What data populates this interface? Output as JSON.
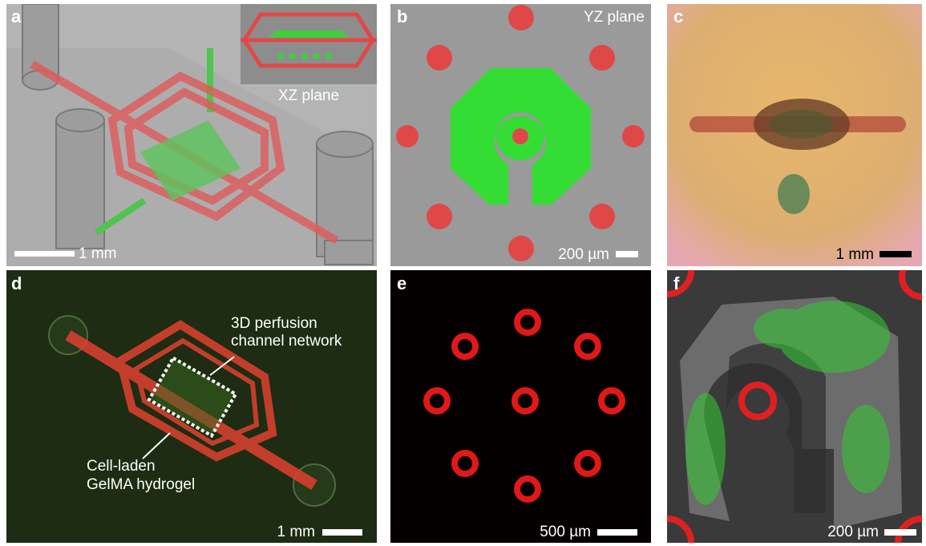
{
  "panels": [
    {
      "letter": "a",
      "inset_label": "XZ plane",
      "scale_bar": "1 mm"
    },
    {
      "letter": "b",
      "plane_label": "YZ plane",
      "scale_bar": "200 µm"
    },
    {
      "letter": "c",
      "scale_bar": "1 mm"
    },
    {
      "letter": "d",
      "annotations": [
        [
          "3D perfusion",
          "channel network"
        ],
        [
          "Cell-laden",
          "GelMA hydrogel"
        ]
      ],
      "scale_bar": "1 mm"
    },
    {
      "letter": "e",
      "scale_bar": "500 µm"
    },
    {
      "letter": "f",
      "scale_bar": "200 µm"
    }
  ]
}
